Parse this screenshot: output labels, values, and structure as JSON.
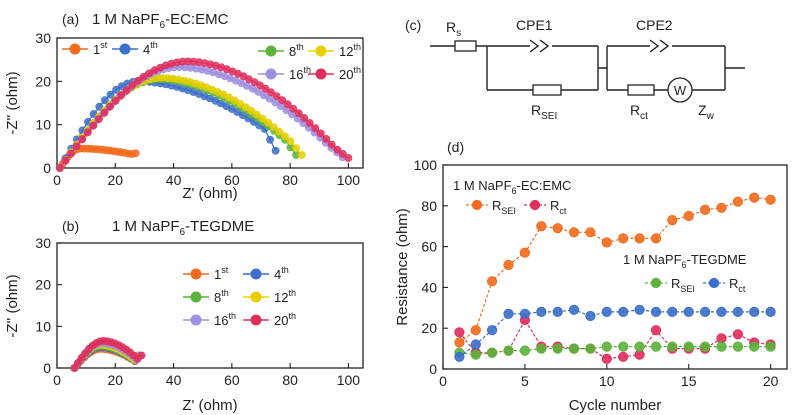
{
  "panels": {
    "a": "(a)",
    "b": "(b)",
    "c": "(c)",
    "d": "(d)"
  },
  "colors": {
    "c1": "#f26b1d",
    "c4": "#3c6fc9",
    "c8": "#5bb33c",
    "c12": "#e8d000",
    "c16": "#9e8ee0",
    "c20": "#e02e5c"
  },
  "chart_data": [
    {
      "id": "a",
      "type": "scatter",
      "title": "1 M NaPF6-EC:EMC",
      "title_parts": [
        "1 M NaPF",
        "6",
        "-EC:EMC"
      ],
      "xlabel": "Z' (ohm)",
      "ylabel": "-Z'' (ohm)",
      "xlim": [
        0,
        105
      ],
      "ylim": [
        0,
        30
      ],
      "xticks": [
        0,
        20,
        40,
        60,
        80,
        100
      ],
      "yticks": [
        0,
        10,
        20,
        30
      ],
      "legend": "top",
      "series": [
        {
          "name": "1",
          "sup": "st",
          "color_key": "c1",
          "x0": 1,
          "x1": 8,
          "peak": 4.5,
          "ymid": 3.2,
          "x2": 27,
          "yend": 3.4,
          "marker_step": 1.3
        },
        {
          "name": "4",
          "sup": "th",
          "color_key": "c4",
          "x0": 1,
          "x1": 28,
          "peak": 20,
          "ymid": 9,
          "x2": 75,
          "yend": 4.0,
          "marker_step": 1.9
        },
        {
          "name": "8",
          "sup": "th",
          "color_key": "c8",
          "x0": 1,
          "x1": 35,
          "peak": 20.5,
          "ymid": 6.5,
          "x2": 82,
          "yend": 3.0,
          "marker_step": 1.9
        },
        {
          "name": "12",
          "sup": "th",
          "color_key": "c12",
          "x0": 1,
          "x1": 36,
          "peak": 20.8,
          "ymid": 6.2,
          "x2": 84,
          "yend": 3.0,
          "marker_step": 1.9
        },
        {
          "name": "16",
          "sup": "th",
          "color_key": "c16",
          "x0": 1,
          "x1": 42,
          "peak": 23.3,
          "ymid": 5,
          "x2": 98,
          "yend": 2.5,
          "marker_step": 1.9
        },
        {
          "name": "20",
          "sup": "th",
          "color_key": "c20",
          "x0": 1,
          "x1": 45,
          "peak": 24.6,
          "ymid": 4.5,
          "x2": 100,
          "yend": 2.3,
          "marker_step": 1.9
        }
      ]
    },
    {
      "id": "b",
      "type": "scatter",
      "title": "1 M NaPF6-TEGDME",
      "title_parts": [
        "1 M NaPF",
        "6",
        "-TEGDME"
      ],
      "xlabel": "Z' (ohm)",
      "ylabel": "-Z'' (ohm)",
      "xlim": [
        0,
        105
      ],
      "ylim": [
        0,
        30
      ],
      "xticks": [
        0,
        20,
        40,
        60,
        80,
        100
      ],
      "yticks": [
        0,
        10,
        20,
        30
      ],
      "legend": "center",
      "series": [
        {
          "name": "1",
          "sup": "st",
          "color_key": "c1",
          "x0": 6,
          "x1": 15,
          "peak": 4.6,
          "ymid": 1.5,
          "x2": 28,
          "yend": 3.0,
          "marker_step": 1.3
        },
        {
          "name": "4",
          "sup": "th",
          "color_key": "c4",
          "x0": 6,
          "x1": 15,
          "peak": 5.0,
          "ymid": 1.6,
          "x2": 28,
          "yend": 3.0,
          "marker_step": 1.3
        },
        {
          "name": "8",
          "sup": "th",
          "color_key": "c8",
          "x0": 6,
          "x1": 15,
          "peak": 5.3,
          "ymid": 1.7,
          "x2": 28,
          "yend": 3.0,
          "marker_step": 1.3
        },
        {
          "name": "12",
          "sup": "th",
          "color_key": "c12",
          "x0": 6,
          "x1": 15,
          "peak": 5.6,
          "ymid": 1.8,
          "x2": 28,
          "yend": 3.0,
          "marker_step": 1.3
        },
        {
          "name": "16",
          "sup": "th",
          "color_key": "c16",
          "x0": 6,
          "x1": 15.5,
          "peak": 6.0,
          "ymid": 1.9,
          "x2": 28.5,
          "yend": 3.0,
          "marker_step": 1.3
        },
        {
          "name": "20",
          "sup": "th",
          "color_key": "c20",
          "x0": 6,
          "x1": 16,
          "peak": 6.5,
          "ymid": 2.0,
          "x2": 29,
          "yend": 3.0,
          "marker_step": 1.3
        }
      ]
    },
    {
      "id": "d",
      "type": "line",
      "xlabel": "Cycle number",
      "ylabel": "Resistance (ohm)",
      "xlim": [
        0,
        21
      ],
      "ylim": [
        0,
        100
      ],
      "xticks": [
        0,
        5,
        10,
        15,
        20
      ],
      "yticks": [
        0,
        20,
        40,
        60,
        80,
        100
      ],
      "legend": "top-left and center-right",
      "groups": [
        {
          "title": "1 M NaPF6-EC:EMC",
          "title_parts": [
            "1 M NaPF",
            "6",
            "-EC:EMC"
          ],
          "labels": [
            "R",
            "SEI",
            "R",
            "ct"
          ]
        },
        {
          "title": "1 M NaPF6-TEGDME",
          "title_parts": [
            "1 M NaPF",
            "6",
            "-TEGDME"
          ],
          "labels": [
            "R",
            "SEI",
            "R",
            "ct"
          ]
        }
      ],
      "x": [
        1,
        2,
        3,
        4,
        5,
        6,
        7,
        8,
        9,
        10,
        11,
        12,
        13,
        14,
        15,
        16,
        17,
        18,
        19,
        20
      ],
      "series": [
        {
          "name": "EC:EMC R_SEI",
          "color_key": "c1",
          "values": [
            13,
            19,
            43,
            51,
            57,
            70,
            69,
            67,
            67,
            62,
            64,
            64,
            64,
            73,
            75,
            78,
            79,
            82,
            84,
            83
          ]
        },
        {
          "name": "EC:EMC R_ct",
          "color_key": "c20",
          "values": [
            18,
            8,
            8,
            9,
            24,
            11,
            11,
            10,
            10,
            5,
            6,
            7,
            19,
            10,
            10,
            10,
            15,
            17,
            13,
            12
          ]
        },
        {
          "name": "TEGDME R_SEI",
          "color_key": "c8",
          "values": [
            8,
            7,
            8,
            9,
            9,
            10,
            10,
            10,
            10,
            11,
            11,
            11,
            11,
            11,
            11,
            11,
            11,
            11,
            11,
            11
          ]
        },
        {
          "name": "TEGDME R_ct",
          "color_key": "c4",
          "values": [
            6,
            12,
            19,
            27,
            27,
            28,
            28,
            29,
            26,
            28,
            28,
            29,
            28,
            28,
            28,
            28,
            28,
            28,
            28,
            28
          ]
        }
      ]
    }
  ],
  "circuit": {
    "rs": [
      "R",
      "s"
    ],
    "cpe1": "CPE1",
    "cpe2": "CPE2",
    "rsei": [
      "R",
      "SEI"
    ],
    "rct": [
      "R",
      "ct"
    ],
    "w": "W",
    "zw": [
      "Z",
      "w"
    ]
  }
}
